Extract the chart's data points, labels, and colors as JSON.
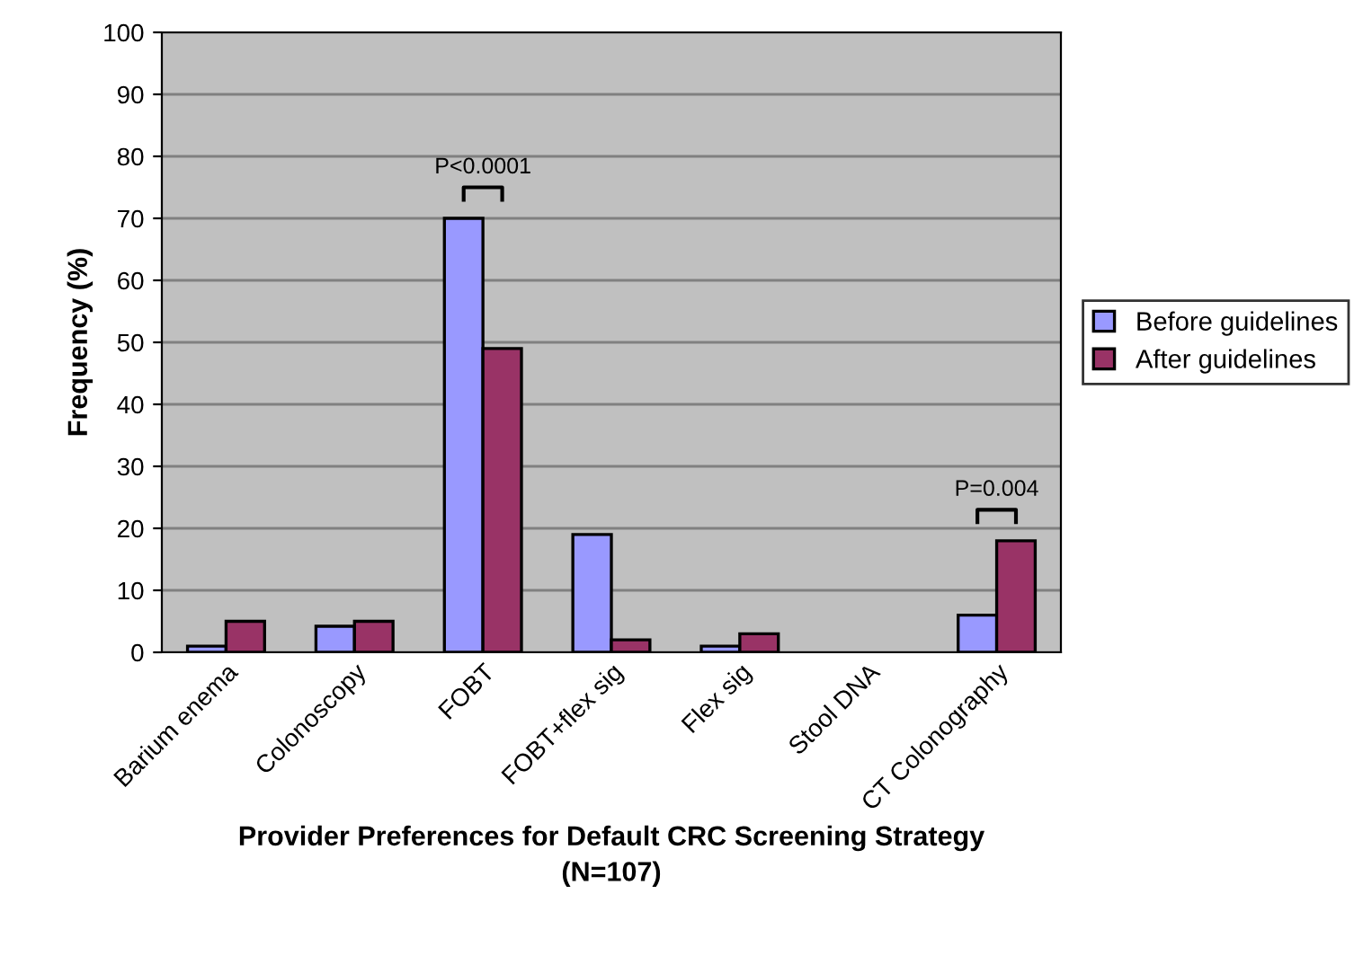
{
  "chart_data": {
    "type": "bar",
    "xlabel": "Provider Preferences for Default CRC Screening Strategy\n(N=107)",
    "ylabel": "Frequency (%)",
    "categories": [
      "Barium enema",
      "Colonoscopy",
      "FOBT",
      "FOBT+flex sig",
      "Flex sig",
      "Stool DNA",
      "CT Colonography"
    ],
    "series": [
      {
        "name": "Before guidelines",
        "color": "#9999ff",
        "values": [
          1,
          4.2,
          70,
          19,
          1,
          null,
          6
        ]
      },
      {
        "name": "After guidelines",
        "color": "#993366",
        "values": [
          5,
          5,
          49,
          2,
          3,
          null,
          18
        ]
      }
    ],
    "ylim": [
      0,
      100
    ],
    "yticks": [
      0,
      10,
      20,
      30,
      40,
      50,
      60,
      70,
      80,
      90,
      100
    ],
    "grid": "y",
    "legend": "right",
    "annotations": [
      "P<0.0001",
      "P=0.004"
    ]
  }
}
